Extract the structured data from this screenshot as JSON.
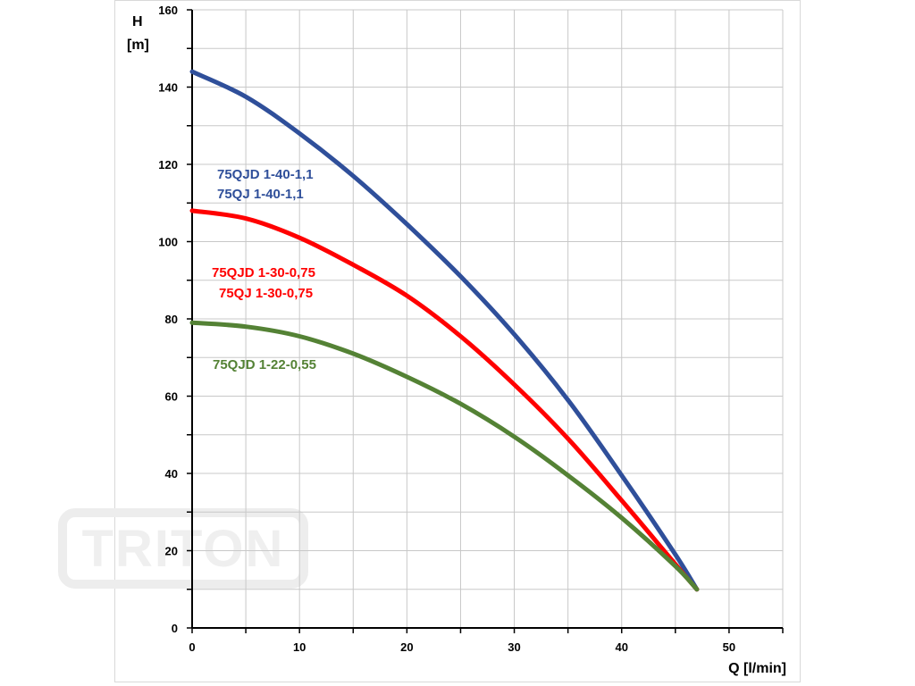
{
  "watermark": {
    "text": "TRITON"
  },
  "chart_data": {
    "type": "line",
    "xlabel": "Q [l/min]",
    "ylabel_line1": "H",
    "ylabel_line2": "[m]",
    "xlim": [
      0,
      55
    ],
    "ylim": [
      0,
      160
    ],
    "x_ticks": [
      0,
      10,
      20,
      30,
      40,
      50
    ],
    "y_ticks": [
      0,
      20,
      40,
      60,
      80,
      100,
      120,
      140,
      160
    ],
    "x_minor_step": 5,
    "y_minor_step": 10,
    "grid": true,
    "legend": "none (inline labels)",
    "series": [
      {
        "name": "75QJD 1-40-1,1",
        "name_line2": "75QJ 1-40-1,1",
        "color": "#2f4f9a",
        "x": [
          0,
          5,
          10,
          15,
          20,
          25,
          30,
          35,
          40,
          45,
          47
        ],
        "y": [
          144,
          137.5,
          128,
          117,
          104.5,
          91,
          76,
          59,
          39.5,
          19,
          10
        ]
      },
      {
        "name": "75QJD 1-30-0,75",
        "name_line2": "75QJ 1-30-0,75",
        "color": "#ff0000",
        "x": [
          0,
          5,
          10,
          15,
          20,
          25,
          30,
          35,
          40,
          45,
          47
        ],
        "y": [
          108,
          106,
          101,
          94,
          86,
          75.5,
          63,
          49,
          33,
          16.5,
          10
        ]
      },
      {
        "name": "75QJD 1-22-0,55",
        "name_line2": "",
        "color": "#548235",
        "x": [
          0,
          5,
          10,
          15,
          20,
          25,
          30,
          35,
          40,
          45,
          47
        ],
        "y": [
          79,
          78,
          75.5,
          71,
          65,
          58,
          49.5,
          39.5,
          28.5,
          16,
          10
        ]
      }
    ]
  }
}
